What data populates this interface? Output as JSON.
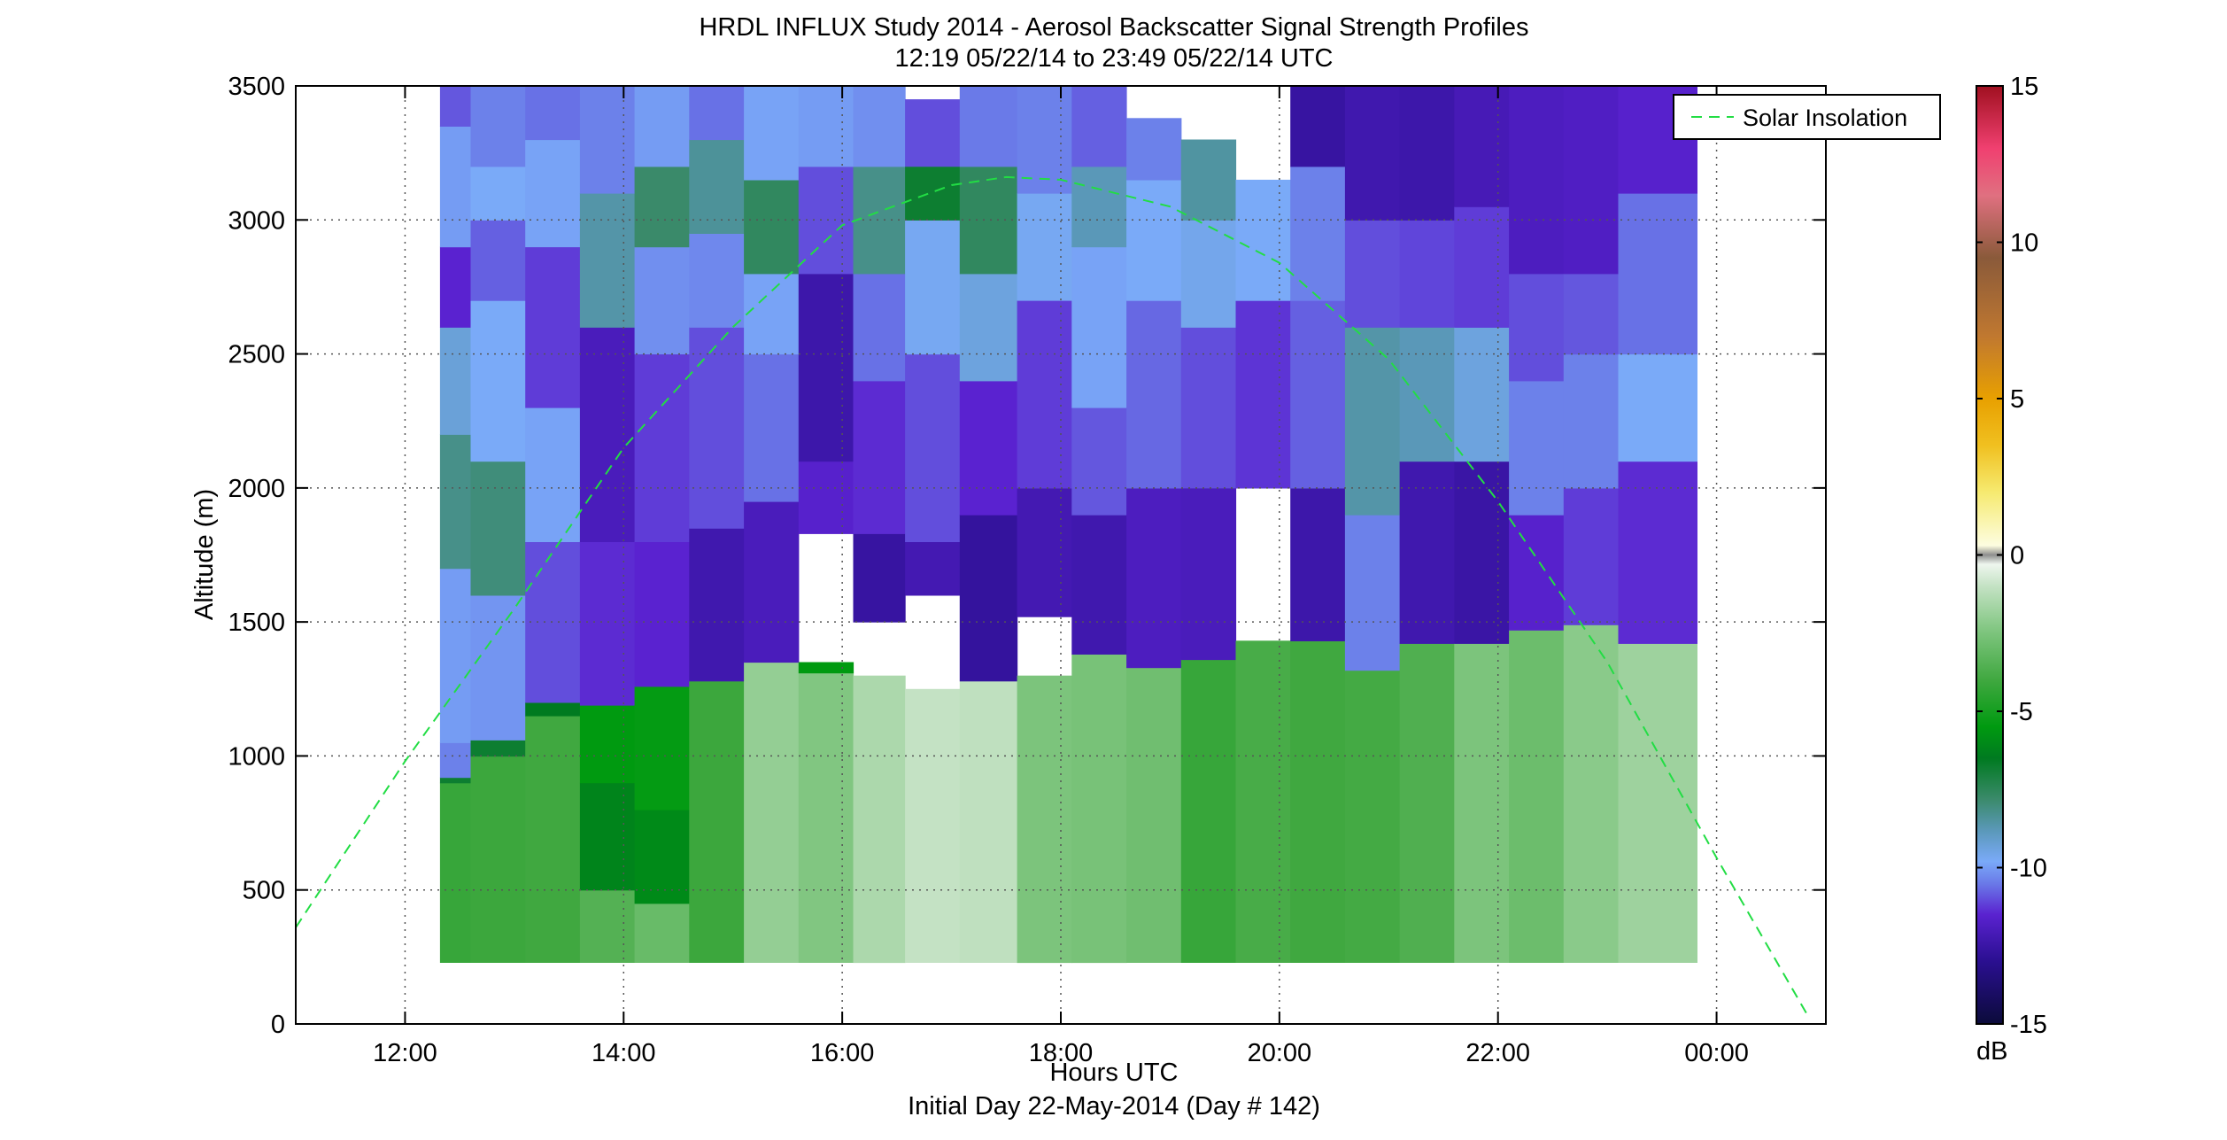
{
  "chart_data": {
    "type": "heatmap",
    "title": "HRDL INFLUX Study 2014 - Aerosol Backscatter Signal Strength Profiles",
    "subtitle": "12:19 05/22/14 to 23:49 05/22/14  UTC",
    "xlabel": "Hours UTC",
    "xlabel2": "Initial Day 22-May-2014 (Day # 142)",
    "ylabel": "Altitude (m)",
    "xlim": [
      11.0,
      25.0
    ],
    "ylim": [
      0,
      3500
    ],
    "x_ticks": [
      {
        "value": 12,
        "label": "12:00"
      },
      {
        "value": 14,
        "label": "14:00"
      },
      {
        "value": 16,
        "label": "16:00"
      },
      {
        "value": 18,
        "label": "18:00"
      },
      {
        "value": 20,
        "label": "20:00"
      },
      {
        "value": 22,
        "label": "22:00"
      },
      {
        "value": 24,
        "label": "00:00"
      }
    ],
    "y_ticks": [
      {
        "value": 0,
        "label": "0"
      },
      {
        "value": 500,
        "label": "500"
      },
      {
        "value": 1000,
        "label": "1000"
      },
      {
        "value": 1500,
        "label": "1500"
      },
      {
        "value": 2000,
        "label": "2000"
      },
      {
        "value": 2500,
        "label": "2500"
      },
      {
        "value": 3000,
        "label": "3000"
      },
      {
        "value": 3500,
        "label": "3500"
      }
    ],
    "grid": true,
    "legend": {
      "placement": "top-right",
      "entries": [
        {
          "label": "Solar Insolation",
          "color": "#22dd44",
          "style": "dashed"
        }
      ]
    },
    "colorbar": {
      "range": [
        -15,
        15
      ],
      "unit": "dB",
      "ticks": [
        {
          "value": 15,
          "label": "15"
        },
        {
          "value": 10,
          "label": "10"
        },
        {
          "value": 5,
          "label": "5"
        },
        {
          "value": 0,
          "label": "0"
        },
        {
          "value": -5,
          "label": "-5"
        },
        {
          "value": -10,
          "label": "-10"
        },
        {
          "value": -15,
          "label": "-15"
        }
      ],
      "stops": [
        {
          "v": -15,
          "c": "#0b0b3a"
        },
        {
          "v": -13,
          "c": "#2a0f90"
        },
        {
          "v": -11.5,
          "c": "#5a22d0"
        },
        {
          "v": -10.5,
          "c": "#6a7ae8"
        },
        {
          "v": -9.8,
          "c": "#7aaaf8"
        },
        {
          "v": -8.8,
          "c": "#5a98b8"
        },
        {
          "v": -7.8,
          "c": "#3a8a6a"
        },
        {
          "v": -6.5,
          "c": "#007a20"
        },
        {
          "v": -5.5,
          "c": "#009a10"
        },
        {
          "v": -4,
          "c": "#40a840"
        },
        {
          "v": -2.5,
          "c": "#7cc47c"
        },
        {
          "v": -1,
          "c": "#c4e2c4"
        },
        {
          "v": -0.3,
          "c": "#eef6ee"
        },
        {
          "v": 0,
          "c": "#8e8e8e"
        },
        {
          "v": 0.3,
          "c": "#fdfde0"
        },
        {
          "v": 2,
          "c": "#f6ea70"
        },
        {
          "v": 3.5,
          "c": "#f0c020"
        },
        {
          "v": 5,
          "c": "#e8a000"
        },
        {
          "v": 7,
          "c": "#c07830"
        },
        {
          "v": 9.5,
          "c": "#8a5a3a"
        },
        {
          "v": 11.5,
          "c": "#e07080"
        },
        {
          "v": 13,
          "c": "#f04070"
        },
        {
          "v": 15,
          "c": "#a01020"
        }
      ]
    },
    "data_time_range": [
      12.32,
      23.82
    ],
    "data_alt_range": [
      230,
      3500
    ],
    "profiles": [
      {
        "time": 12.35,
        "boundary_layer_top": 920,
        "segments": [
          [
            230,
            900,
            -4.2
          ],
          [
            900,
            920,
            -6.8
          ],
          [
            920,
            1050,
            -10.4
          ],
          [
            1050,
            1700,
            -10.0
          ],
          [
            1700,
            2200,
            -8.2
          ],
          [
            2200,
            2600,
            -9.3
          ],
          [
            2600,
            2900,
            -11.5
          ],
          [
            2900,
            3350,
            -10.0
          ],
          [
            3350,
            3500,
            -10.9
          ]
        ]
      },
      {
        "time": 12.85,
        "boundary_layer_top": 1060,
        "segments": [
          [
            230,
            1000,
            -4.1
          ],
          [
            1000,
            1060,
            -6.8
          ],
          [
            1060,
            1600,
            -10.1
          ],
          [
            1600,
            2100,
            -8.0
          ],
          [
            2100,
            2700,
            -9.8
          ],
          [
            2700,
            3000,
            -10.8
          ],
          [
            3000,
            3200,
            -9.8
          ],
          [
            3200,
            3500,
            -10.4
          ]
        ]
      },
      {
        "time": 13.35,
        "boundary_layer_top": 1200,
        "segments": [
          [
            230,
            1150,
            -4.0
          ],
          [
            1150,
            1200,
            -6.5
          ],
          [
            1200,
            1800,
            -11.0
          ],
          [
            1800,
            2300,
            -9.9
          ],
          [
            2300,
            2900,
            -11.2
          ],
          [
            2900,
            3300,
            -9.9
          ],
          [
            3300,
            3500,
            -10.6
          ]
        ]
      },
      {
        "time": 13.85,
        "boundary_layer_top": 1190,
        "segments": [
          [
            230,
            500,
            -3.5
          ],
          [
            500,
            900,
            -6.2
          ],
          [
            900,
            1190,
            -5.5
          ],
          [
            1190,
            1800,
            -11.4
          ],
          [
            1800,
            2600,
            -12.0
          ],
          [
            2600,
            3100,
            -8.6
          ],
          [
            3100,
            3500,
            -10.4
          ]
        ]
      },
      {
        "time": 14.35,
        "boundary_layer_top": 1260,
        "segments": [
          [
            230,
            450,
            -3.0
          ],
          [
            450,
            800,
            -6.0
          ],
          [
            800,
            1260,
            -5.4
          ],
          [
            1260,
            1800,
            -11.5
          ],
          [
            1800,
            2500,
            -11.2
          ],
          [
            2500,
            2900,
            -10.2
          ],
          [
            2900,
            3200,
            -7.8
          ],
          [
            3200,
            3500,
            -10.0
          ]
        ]
      },
      {
        "time": 14.85,
        "boundary_layer_top": 1280,
        "segments": [
          [
            230,
            1280,
            -4.1
          ],
          [
            1280,
            1850,
            -12.3
          ],
          [
            1850,
            2600,
            -11.0
          ],
          [
            2600,
            2950,
            -10.3
          ],
          [
            2950,
            3300,
            -8.4
          ],
          [
            3300,
            3500,
            -10.6
          ]
        ]
      },
      {
        "time": 15.35,
        "boundary_layer_top": 1350,
        "segments": [
          [
            230,
            1350,
            -2.0
          ],
          [
            1350,
            1950,
            -12.0
          ],
          [
            1950,
            2500,
            -10.6
          ],
          [
            2500,
            2800,
            -9.9
          ],
          [
            2800,
            3150,
            -7.6
          ],
          [
            3150,
            3500,
            -9.9
          ]
        ]
      },
      {
        "time": 15.85,
        "boundary_layer_top": 1310,
        "segments": [
          [
            230,
            1310,
            -2.4
          ],
          [
            1310,
            1350,
            -5.5
          ],
          [
            1350,
            1830,
            null
          ],
          [
            1830,
            2100,
            -11.6
          ],
          [
            2100,
            2800,
            -12.4
          ],
          [
            2800,
            3200,
            -11.0
          ],
          [
            3200,
            3500,
            -10.0
          ]
        ]
      },
      {
        "time": 16.35,
        "boundary_layer_top": 1300,
        "segments": [
          [
            230,
            1300,
            -1.5
          ],
          [
            1300,
            1500,
            null
          ],
          [
            1500,
            1830,
            -12.6
          ],
          [
            1830,
            2400,
            -11.4
          ],
          [
            2400,
            2800,
            -10.6
          ],
          [
            2800,
            3200,
            -8.2
          ],
          [
            3200,
            3500,
            -10.2
          ]
        ]
      },
      {
        "time": 16.8,
        "boundary_layer_top": 1250,
        "segments": [
          [
            230,
            1250,
            -1.0
          ],
          [
            1250,
            1600,
            null
          ],
          [
            1600,
            1800,
            -12.2
          ],
          [
            1800,
            2500,
            -11.0
          ],
          [
            2500,
            3000,
            -9.7
          ],
          [
            3000,
            3200,
            -6.8
          ],
          [
            3200,
            3450,
            -11.0
          ],
          [
            3450,
            3500,
            null
          ]
        ]
      },
      {
        "time": 17.35,
        "boundary_layer_top": 1280,
        "segments": [
          [
            230,
            1280,
            -1.1
          ],
          [
            1280,
            1900,
            -12.7
          ],
          [
            1900,
            2400,
            -11.5
          ],
          [
            2400,
            2800,
            -9.4
          ],
          [
            2800,
            3200,
            -7.6
          ],
          [
            3200,
            3500,
            -10.5
          ]
        ]
      },
      {
        "time": 17.85,
        "boundary_layer_top": 1300,
        "segments": [
          [
            230,
            1300,
            -2.5
          ],
          [
            1300,
            1520,
            null
          ],
          [
            1520,
            2000,
            -12.2
          ],
          [
            2000,
            2700,
            -11.2
          ],
          [
            2700,
            3100,
            -9.7
          ],
          [
            3100,
            3500,
            -10.4
          ]
        ]
      },
      {
        "time": 18.35,
        "boundary_layer_top": 1380,
        "segments": [
          [
            230,
            1380,
            -2.6
          ],
          [
            1380,
            1900,
            -12.3
          ],
          [
            1900,
            2300,
            -10.9
          ],
          [
            2300,
            2900,
            -9.9
          ],
          [
            2900,
            3200,
            -8.8
          ],
          [
            3200,
            3500,
            -10.8
          ]
        ]
      },
      {
        "time": 18.85,
        "boundary_layer_top": 1330,
        "segments": [
          [
            230,
            1330,
            -2.8
          ],
          [
            1330,
            2000,
            -11.9
          ],
          [
            2000,
            2700,
            -10.7
          ],
          [
            2700,
            3150,
            -9.8
          ],
          [
            3150,
            3380,
            -10.4
          ],
          [
            3380,
            3500,
            null
          ]
        ]
      },
      {
        "time": 19.35,
        "boundary_layer_top": 1360,
        "segments": [
          [
            230,
            1360,
            -4.2
          ],
          [
            1360,
            2000,
            -12.0
          ],
          [
            2000,
            2600,
            -11.0
          ],
          [
            2600,
            3000,
            -9.6
          ],
          [
            3000,
            3300,
            -8.5
          ],
          [
            3300,
            3500,
            null
          ]
        ]
      },
      {
        "time": 19.85,
        "boundary_layer_top": 1430,
        "segments": [
          [
            230,
            1430,
            -3.8
          ],
          [
            1430,
            2000,
            null
          ],
          [
            2000,
            2700,
            -11.3
          ],
          [
            2700,
            3150,
            -9.8
          ],
          [
            3150,
            3500,
            null
          ]
        ]
      },
      {
        "time": 20.35,
        "boundary_layer_top": 1430,
        "segments": [
          [
            230,
            1430,
            -4.0
          ],
          [
            1430,
            2000,
            -12.4
          ],
          [
            2000,
            2700,
            -10.8
          ],
          [
            2700,
            3200,
            -10.4
          ],
          [
            3200,
            3500,
            -12.6
          ]
        ]
      },
      {
        "time": 20.85,
        "boundary_layer_top": 1320,
        "segments": [
          [
            230,
            1320,
            -3.9
          ],
          [
            1320,
            1900,
            -10.4
          ],
          [
            1900,
            2600,
            -8.6
          ],
          [
            2600,
            3000,
            -11.0
          ],
          [
            3000,
            3500,
            -12.3
          ]
        ]
      },
      {
        "time": 21.35,
        "boundary_layer_top": 1420,
        "segments": [
          [
            230,
            1420,
            -3.6
          ],
          [
            1420,
            2100,
            -12.3
          ],
          [
            2100,
            2600,
            -8.8
          ],
          [
            2600,
            3000,
            -11.1
          ],
          [
            3000,
            3500,
            -12.4
          ]
        ]
      },
      {
        "time": 21.85,
        "boundary_layer_top": 1420,
        "segments": [
          [
            230,
            1420,
            -2.5
          ],
          [
            1420,
            2100,
            -12.5
          ],
          [
            2100,
            2600,
            -9.4
          ],
          [
            2600,
            3050,
            -11.2
          ],
          [
            3050,
            3500,
            -12.1
          ]
        ]
      },
      {
        "time": 22.35,
        "boundary_layer_top": 1470,
        "segments": [
          [
            230,
            1470,
            -2.9
          ],
          [
            1470,
            1900,
            -11.6
          ],
          [
            1900,
            2400,
            -10.4
          ],
          [
            2400,
            2800,
            -11.0
          ],
          [
            2800,
            3500,
            -11.9
          ]
        ]
      },
      {
        "time": 22.85,
        "boundary_layer_top": 1490,
        "segments": [
          [
            230,
            1490,
            -2.2
          ],
          [
            1490,
            2000,
            -11.2
          ],
          [
            2000,
            2500,
            -10.4
          ],
          [
            2500,
            2800,
            -10.9
          ],
          [
            2800,
            3500,
            -11.8
          ]
        ]
      },
      {
        "time": 23.35,
        "boundary_layer_top": 1420,
        "segments": [
          [
            230,
            1420,
            -1.8
          ],
          [
            1420,
            2100,
            -11.4
          ],
          [
            2100,
            2500,
            -9.8
          ],
          [
            2500,
            3100,
            -10.6
          ],
          [
            3100,
            3500,
            -11.6
          ]
        ]
      }
    ],
    "solar_insolation_curve": {
      "label": "Solar Insolation",
      "x": [
        11.0,
        12.0,
        13.0,
        14.0,
        15.0,
        16.0,
        17.0,
        17.5,
        18.0,
        19.0,
        20.0,
        21.0,
        22.0,
        23.0,
        24.0,
        24.85
      ],
      "y": [
        360,
        980,
        1550,
        2150,
        2600,
        2980,
        3130,
        3160,
        3150,
        3050,
        2840,
        2480,
        1950,
        1350,
        620,
        20
      ]
    }
  }
}
